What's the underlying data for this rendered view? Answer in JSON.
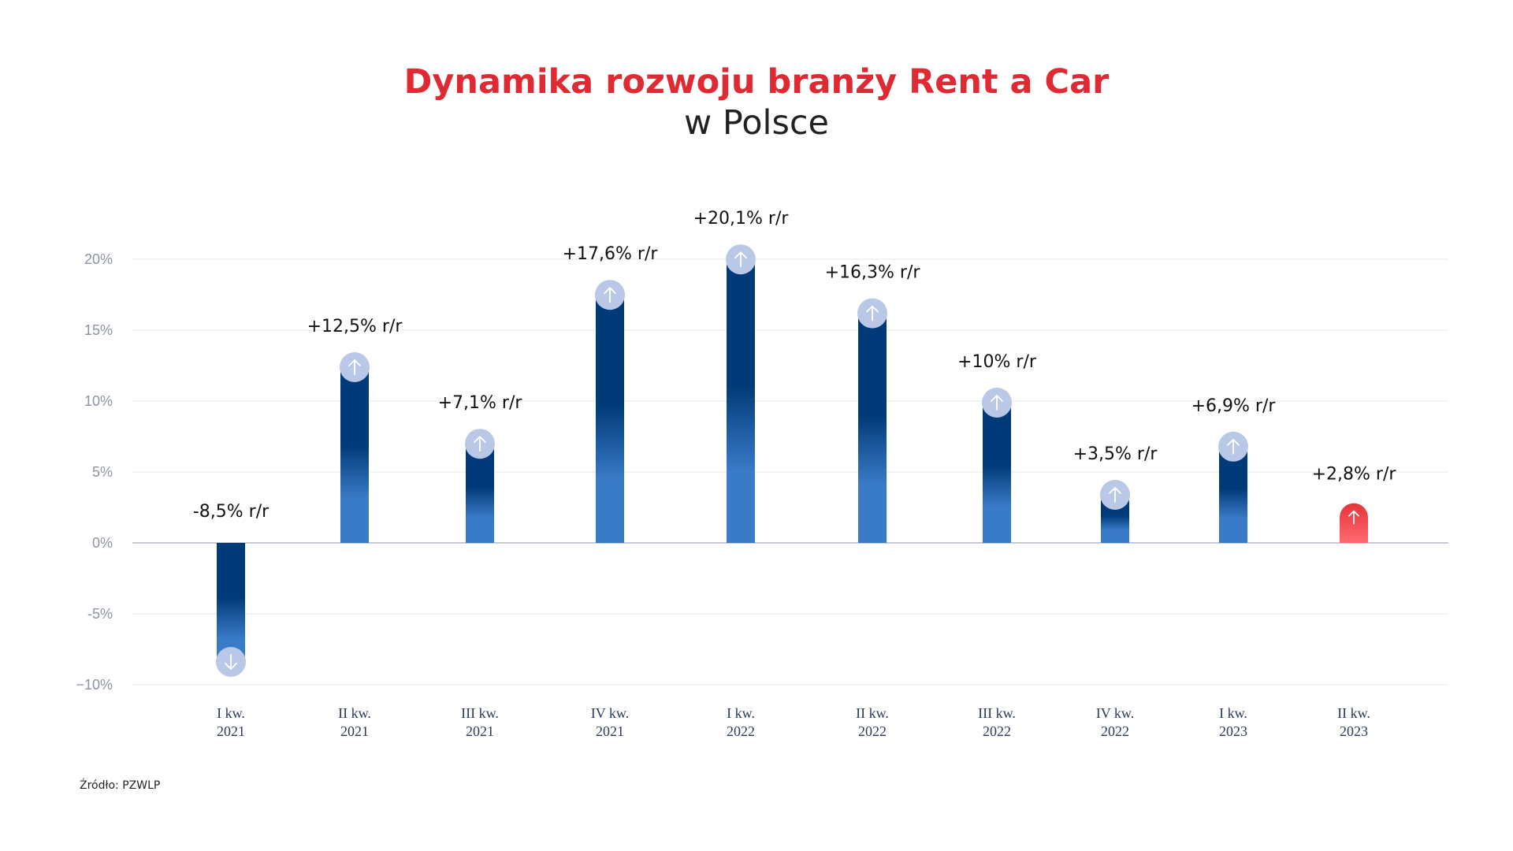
{
  "header": {
    "title": "Dynamika rozwoju branży Rent a Car",
    "subtitle": "w Polsce"
  },
  "footer": {
    "source": "Źródło: PZWLP"
  },
  "colors": {
    "bar_dark": "#013a78",
    "bar_light": "#3a7bc8",
    "highlight_top": "#e8323b",
    "highlight_bottom": "#ff6a70",
    "cap": "#b9c8e6",
    "grid": "#e6e8ee",
    "axis": "#b5b9c4"
  },
  "chart_data": {
    "type": "bar",
    "categories": [
      [
        "I kw.",
        "2021"
      ],
      [
        "II kw.",
        "2021"
      ],
      [
        "III kw.",
        "2021"
      ],
      [
        "IV kw.",
        "2021"
      ],
      [
        "I kw.",
        "2022"
      ],
      [
        "II kw.",
        "2022"
      ],
      [
        "III kw.",
        "2022"
      ],
      [
        "IV kw.",
        "2022"
      ],
      [
        "I kw.",
        "2023"
      ],
      [
        "II kw.",
        "2023"
      ]
    ],
    "values": [
      -8.5,
      12.5,
      7.1,
      17.6,
      20.1,
      16.3,
      10,
      3.5,
      6.9,
      2.8
    ],
    "data_labels": [
      "-8,5% r/r",
      "+12,5% r/r",
      "+7,1% r/r",
      "+17,6% r/r",
      "+20,1% r/r",
      "+16,3% r/r",
      "+10% r/r",
      "+3,5% r/r",
      "+6,9% r/r",
      "+2,8% r/r"
    ],
    "highlight_index": 9,
    "yticks": [
      20,
      15,
      10,
      5,
      0,
      -5,
      -10
    ],
    "ytick_labels": [
      "20%",
      "15%",
      "10%",
      "5%",
      "0%",
      "-5%",
      "−10%"
    ],
    "ylim": [
      -10,
      20
    ],
    "grid": true,
    "xlabel": "",
    "ylabel": ""
  }
}
